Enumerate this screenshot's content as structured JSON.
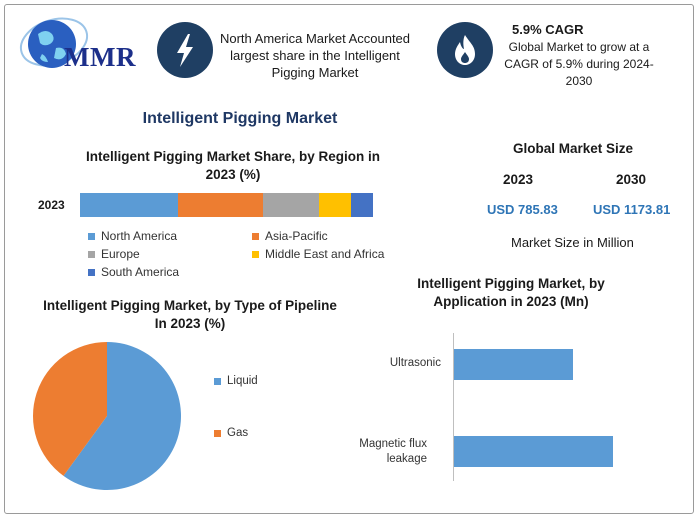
{
  "logo": {
    "text": "MMR"
  },
  "header": {
    "highlight_text": "North America Market Accounted largest share in the Intelligent Pigging Market",
    "cagr_title": "5.9% CAGR",
    "cagr_text": "Global Market to grow at a CAGR of 5.9% during 2024-2030",
    "icons": [
      "lightning-icon",
      "flame-icon"
    ],
    "icon_bg": "#1f3f63"
  },
  "main_title": "Intelligent Pigging Market",
  "colors": {
    "north_america": "#5b9bd5",
    "asia_pacific": "#ed7d31",
    "europe": "#a5a5a5",
    "mea": "#ffc000",
    "south_america": "#4472c4",
    "value_blue": "#2e75b6"
  },
  "market_size": {
    "title": "Global Market Size",
    "year_start": "2023",
    "year_end": "2030",
    "value_start": "USD 785.83",
    "value_end": "USD 1173.81",
    "note": "Market Size in Million"
  },
  "chart_data": [
    {
      "type": "bar",
      "orientation": "horizontal-stacked",
      "title": "Intelligent Pigging Market Share, by Region in 2023 (%)",
      "categories": [
        "2023"
      ],
      "series": [
        {
          "name": "North America",
          "values": [
            33.5
          ]
        },
        {
          "name": "Asia-Pacific",
          "values": [
            29
          ]
        },
        {
          "name": "Europe",
          "values": [
            19
          ]
        },
        {
          "name": "Middle East and Africa",
          "values": [
            11
          ]
        },
        {
          "name": "South America",
          "values": [
            7.5
          ]
        }
      ],
      "xlim": [
        0,
        100
      ],
      "legend": "bottom",
      "grid": false
    },
    {
      "type": "pie",
      "title": "Intelligent Pigging Market, by Type of Pipeline In 2023 (%)",
      "labels": [
        "Liquid",
        "Gas"
      ],
      "values": [
        60,
        40
      ],
      "colors": [
        "#5b9bd5",
        "#ed7d31"
      ],
      "legend": "right"
    },
    {
      "type": "bar",
      "orientation": "horizontal",
      "title": "Intelligent Pigging Market, by Application in 2023 (Mn)",
      "categories": [
        "Ultrasonic",
        "Magnetic flux leakage"
      ],
      "values": [
        119,
        159
      ],
      "xlim": [
        0,
        170
      ],
      "grid": false,
      "legend": "none"
    }
  ]
}
